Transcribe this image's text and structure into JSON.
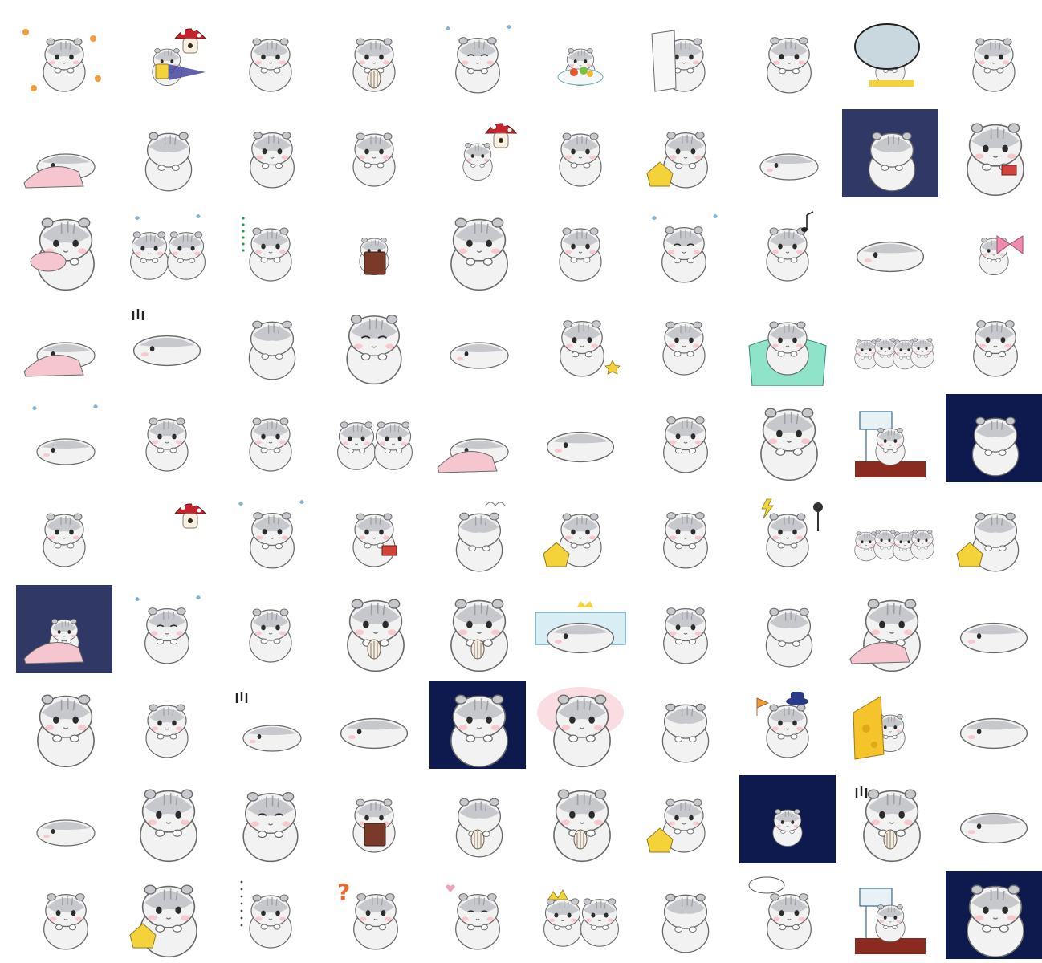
{
  "grid": {
    "rows": 10,
    "cols": 10
  },
  "palette": {
    "fur": "#f2f2f2",
    "fur_grey": "#c7c8cc",
    "outline": "#6a6a6a",
    "blush": "#f7c9cf",
    "eye": "#2b2b2b",
    "night": "#0e1a4d",
    "mint": "#8fe3c9",
    "yellow": "#f4d23a",
    "red": "#c8232c",
    "brown": "#7a3a2a",
    "pink": "#f5c6cf",
    "orange": "#f29b3a"
  },
  "stickers": [
    {
      "n": 1,
      "pose": "sit",
      "props": [
        "flowers"
      ]
    },
    {
      "n": 2,
      "pose": "small",
      "props": [
        "mushroom",
        "suitcase"
      ]
    },
    {
      "n": 3,
      "pose": "sit",
      "props": []
    },
    {
      "n": 4,
      "pose": "sit",
      "props": [
        "seed"
      ]
    },
    {
      "n": 5,
      "pose": "squeeze",
      "props": [
        "sweat"
      ]
    },
    {
      "n": 6,
      "pose": "small",
      "props": [
        "plate"
      ]
    },
    {
      "n": 7,
      "pose": "sit",
      "props": [
        "paper"
      ]
    },
    {
      "n": 8,
      "pose": "side",
      "props": []
    },
    {
      "n": 9,
      "pose": "small",
      "props": [
        "bubble"
      ]
    },
    {
      "n": 10,
      "pose": "sit",
      "props": []
    },
    {
      "n": 11,
      "pose": "lie",
      "props": [
        "blanket"
      ]
    },
    {
      "n": 12,
      "pose": "back",
      "props": []
    },
    {
      "n": 13,
      "pose": "side",
      "props": []
    },
    {
      "n": 14,
      "pose": "sit",
      "props": []
    },
    {
      "n": 15,
      "pose": "small",
      "props": [
        "mushroom"
      ]
    },
    {
      "n": 16,
      "pose": "sit",
      "props": []
    },
    {
      "n": 17,
      "pose": "side",
      "props": [
        "bag"
      ]
    },
    {
      "n": 18,
      "pose": "lie",
      "props": []
    },
    {
      "n": 19,
      "pose": "back",
      "props": [
        "dark"
      ]
    },
    {
      "n": 20,
      "pose": "big",
      "props": [
        "book-red"
      ]
    },
    {
      "n": 21,
      "pose": "big",
      "props": [
        "pillow"
      ]
    },
    {
      "n": 22,
      "pose": "pair",
      "props": [
        "sweat"
      ]
    },
    {
      "n": 23,
      "pose": "sit",
      "props": [
        "dots-green"
      ]
    },
    {
      "n": 24,
      "pose": "small",
      "props": [
        "clipboard"
      ]
    },
    {
      "n": 25,
      "pose": "big",
      "props": []
    },
    {
      "n": 26,
      "pose": "sit",
      "props": []
    },
    {
      "n": 27,
      "pose": "squeeze",
      "props": [
        "sweat"
      ]
    },
    {
      "n": 28,
      "pose": "sit",
      "props": [
        "note"
      ]
    },
    {
      "n": 29,
      "pose": "flat",
      "props": []
    },
    {
      "n": 30,
      "pose": "small",
      "props": [
        "bow"
      ]
    },
    {
      "n": 31,
      "pose": "lie",
      "props": [
        "blanket"
      ]
    },
    {
      "n": 32,
      "pose": "flat",
      "props": [
        "exclaim"
      ]
    },
    {
      "n": 33,
      "pose": "back",
      "props": []
    },
    {
      "n": 34,
      "pose": "cheer",
      "props": []
    },
    {
      "n": 35,
      "pose": "lie",
      "props": []
    },
    {
      "n": 36,
      "pose": "side",
      "props": [
        "star"
      ]
    },
    {
      "n": 37,
      "pose": "sit",
      "props": []
    },
    {
      "n": 38,
      "pose": "sit",
      "props": [
        "tub"
      ]
    },
    {
      "n": 39,
      "pose": "group",
      "props": []
    },
    {
      "n": 40,
      "pose": "side",
      "props": []
    },
    {
      "n": 41,
      "pose": "lie",
      "props": [
        "bubbles"
      ]
    },
    {
      "n": 42,
      "pose": "sit",
      "props": []
    },
    {
      "n": 43,
      "pose": "sit",
      "props": []
    },
    {
      "n": 44,
      "pose": "pair",
      "props": []
    },
    {
      "n": 45,
      "pose": "lie",
      "props": [
        "blanket"
      ]
    },
    {
      "n": 46,
      "pose": "flat",
      "props": []
    },
    {
      "n": 47,
      "pose": "side",
      "props": []
    },
    {
      "n": 48,
      "pose": "big",
      "props": []
    },
    {
      "n": 49,
      "pose": "small",
      "props": [
        "sign"
      ]
    },
    {
      "n": 50,
      "pose": "back",
      "props": [
        "night"
      ]
    },
    {
      "n": 51,
      "pose": "sit",
      "props": []
    },
    {
      "n": 52,
      "pose": "none",
      "props": [
        "mushroom"
      ]
    },
    {
      "n": 53,
      "pose": "side",
      "props": [
        "sweat"
      ]
    },
    {
      "n": 54,
      "pose": "sit",
      "props": [
        "book-red"
      ]
    },
    {
      "n": 55,
      "pose": "back",
      "props": [
        "steam"
      ]
    },
    {
      "n": 56,
      "pose": "sit",
      "props": [
        "bag"
      ]
    },
    {
      "n": 57,
      "pose": "side",
      "props": []
    },
    {
      "n": 58,
      "pose": "sit",
      "props": [
        "bolt"
      ]
    },
    {
      "n": 59,
      "pose": "group",
      "props": []
    },
    {
      "n": 60,
      "pose": "back",
      "props": [
        "bag"
      ]
    },
    {
      "n": 61,
      "pose": "small",
      "props": [
        "blanket",
        "dark"
      ]
    },
    {
      "n": 62,
      "pose": "squeeze",
      "props": [
        "sweat"
      ]
    },
    {
      "n": 63,
      "pose": "sit",
      "props": []
    },
    {
      "n": 64,
      "pose": "big",
      "props": [
        "seed"
      ]
    },
    {
      "n": 65,
      "pose": "big",
      "props": [
        "seed"
      ]
    },
    {
      "n": 66,
      "pose": "flat",
      "props": [
        "banner"
      ]
    },
    {
      "n": 67,
      "pose": "side",
      "props": []
    },
    {
      "n": 68,
      "pose": "back",
      "props": []
    },
    {
      "n": 69,
      "pose": "big",
      "props": [
        "blanket"
      ]
    },
    {
      "n": 70,
      "pose": "flat",
      "props": []
    },
    {
      "n": 71,
      "pose": "big",
      "props": []
    },
    {
      "n": 72,
      "pose": "sit",
      "props": []
    },
    {
      "n": 73,
      "pose": "lie",
      "props": [
        "exclaim"
      ]
    },
    {
      "n": 74,
      "pose": "flat",
      "props": []
    },
    {
      "n": 75,
      "pose": "big",
      "props": [
        "night"
      ]
    },
    {
      "n": 76,
      "pose": "big",
      "props": [
        "pinkcloud"
      ]
    },
    {
      "n": 77,
      "pose": "back",
      "props": []
    },
    {
      "n": 78,
      "pose": "sit",
      "props": [
        "hat",
        "flag"
      ]
    },
    {
      "n": 79,
      "pose": "small",
      "props": [
        "cheese"
      ]
    },
    {
      "n": 80,
      "pose": "flat",
      "props": []
    },
    {
      "n": 81,
      "pose": "lie",
      "props": []
    },
    {
      "n": 82,
      "pose": "big",
      "props": []
    },
    {
      "n": 83,
      "pose": "cheer",
      "props": []
    },
    {
      "n": 84,
      "pose": "sit",
      "props": [
        "clipboard"
      ]
    },
    {
      "n": 85,
      "pose": "back",
      "props": [
        "seeds"
      ]
    },
    {
      "n": 86,
      "pose": "big",
      "props": [
        "seed"
      ]
    },
    {
      "n": 87,
      "pose": "sit",
      "props": [
        "bag"
      ]
    },
    {
      "n": 88,
      "pose": "small",
      "props": [
        "night"
      ]
    },
    {
      "n": 89,
      "pose": "big",
      "props": [
        "seed",
        "exclaim"
      ]
    },
    {
      "n": 90,
      "pose": "flat",
      "props": []
    },
    {
      "n": 91,
      "pose": "side",
      "props": []
    },
    {
      "n": 92,
      "pose": "big",
      "props": [
        "bag"
      ]
    },
    {
      "n": 93,
      "pose": "sit",
      "props": [
        "dots"
      ]
    },
    {
      "n": 94,
      "pose": "side",
      "props": [
        "question"
      ]
    },
    {
      "n": 95,
      "pose": "squeeze",
      "props": [
        "heart"
      ]
    },
    {
      "n": 96,
      "pose": "pair",
      "props": [
        "crown"
      ]
    },
    {
      "n": 97,
      "pose": "back",
      "props": []
    },
    {
      "n": 98,
      "pose": "side",
      "props": [
        "bubble-dots"
      ]
    },
    {
      "n": 99,
      "pose": "small",
      "props": [
        "sign"
      ]
    },
    {
      "n": 100,
      "pose": "big",
      "props": [
        "night"
      ]
    }
  ]
}
